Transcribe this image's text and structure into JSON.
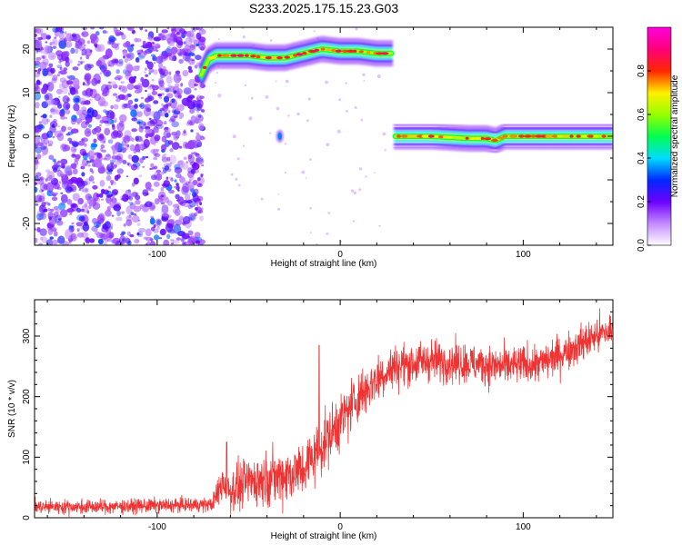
{
  "figure": {
    "title": "S233.2025.175.15.23.G03"
  },
  "chart_data": [
    {
      "type": "heatmap",
      "title": "S233.2025.175.15.23.G03",
      "xlabel": "Height of straight line (km)",
      "ylabel": "Frequency (Hz)",
      "xlim": [
        -167,
        149
      ],
      "ylim": [
        -25,
        25
      ],
      "xticks": [
        -100,
        0,
        100
      ],
      "yticks": [
        -20,
        -10,
        0,
        10,
        20
      ],
      "xtick_labels": [
        "-100",
        "0",
        "100"
      ],
      "ytick_labels": [
        "-20",
        "-10",
        "0",
        "10",
        "20"
      ],
      "colorbar": {
        "label": "Normalized spectral amplitude",
        "range": [
          0,
          1
        ],
        "ticks": [
          0.0,
          0.2,
          0.4,
          0.6,
          0.8
        ],
        "tick_labels": [
          "0.0",
          "0.2",
          "0.4",
          "0.6",
          "0.8"
        ],
        "colormap": "rainbow (white-violet-blue-cyan-green-yellow-red-magenta)"
      },
      "ridges": [
        {
          "points": [
            [
              -76,
              14
            ],
            [
              -72,
              17.5
            ],
            [
              -68,
              18.5
            ],
            [
              -60,
              18.5
            ],
            [
              -50,
              18.5
            ],
            [
              -40,
              18
            ],
            [
              -30,
              18
            ],
            [
              -20,
              19
            ],
            [
              -10,
              20
            ],
            [
              0,
              19.5
            ],
            [
              10,
              19.5
            ],
            [
              20,
              19
            ],
            [
              28,
              19
            ]
          ],
          "amplitude": 0.85
        },
        {
          "points": [
            [
              30,
              0
            ],
            [
              50,
              0
            ],
            [
              70,
              -0.5
            ],
            [
              80,
              -0.5
            ],
            [
              85,
              -1
            ],
            [
              90,
              0
            ],
            [
              110,
              0
            ],
            [
              130,
              0
            ],
            [
              149,
              0
            ]
          ],
          "amplitude": 0.8
        }
      ],
      "blobs": [
        {
          "x": -33,
          "y": 0,
          "amplitude": 0.3
        }
      ],
      "noise_region": {
        "x": [
          -167,
          -75
        ],
        "y": [
          -25,
          25
        ],
        "amplitude_range": [
          0.1,
          0.35
        ]
      }
    },
    {
      "type": "line",
      "xlabel": "Height of straight line (km)",
      "ylabel": "SNR (10 * v/v)",
      "xlim": [
        -167,
        149
      ],
      "ylim": [
        0,
        360
      ],
      "xticks": [
        -100,
        0,
        100
      ],
      "yticks": [
        0,
        100,
        200,
        300
      ],
      "xtick_labels": [
        "-100",
        "0",
        "100"
      ],
      "ytick_labels": [
        "0",
        "100",
        "200",
        "300"
      ],
      "grid": false,
      "color": "#ef3333",
      "trend": {
        "x": [
          -167,
          -130,
          -100,
          -70,
          -64,
          -60,
          -50,
          -40,
          -30,
          -20,
          -10,
          0,
          10,
          20,
          30,
          50,
          70,
          90,
          110,
          120,
          130,
          140,
          149
        ],
        "y": [
          18,
          18,
          20,
          22,
          60,
          45,
          60,
          65,
          70,
          80,
          120,
          160,
          200,
          230,
          250,
          260,
          255,
          250,
          255,
          270,
          285,
          300,
          310
        ]
      },
      "noise_amplitude": {
        "x": [
          -167,
          -70,
          -64,
          -30,
          0,
          30,
          100,
          149
        ],
        "y": [
          15,
          15,
          45,
          60,
          60,
          45,
          40,
          40
        ]
      },
      "spikes": [
        {
          "x": -11.5,
          "y": 285
        },
        {
          "x": -62,
          "y": 125
        }
      ],
      "sample_count": 2200
    }
  ]
}
